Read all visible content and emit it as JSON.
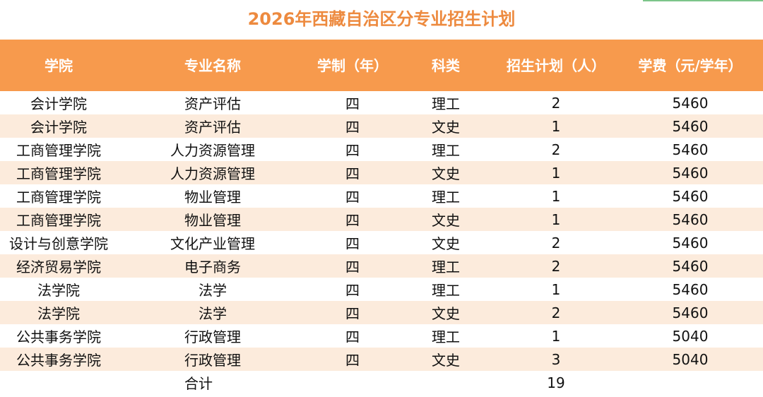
{
  "title": "2026年西藏自治区分专业招生计划",
  "headers": [
    "学院",
    "专业名称",
    "学制（年）",
    "科类",
    "招生计划（人）",
    "学费（元/学年）"
  ],
  "rows": [
    [
      "会计学院",
      "资产评估",
      "四",
      "理工",
      "2",
      "5460"
    ],
    [
      "会计学院",
      "资产评估",
      "四",
      "文史",
      "1",
      "5460"
    ],
    [
      "工商管理学院",
      "人力资源管理",
      "四",
      "理工",
      "2",
      "5460"
    ],
    [
      "工商管理学院",
      "人力资源管理",
      "四",
      "文史",
      "1",
      "5460"
    ],
    [
      "工商管理学院",
      "物业管理",
      "四",
      "理工",
      "1",
      "5460"
    ],
    [
      "工商管理学院",
      "物业管理",
      "四",
      "文史",
      "1",
      "5460"
    ],
    [
      "设计与创意学院",
      "文化产业管理",
      "四",
      "文史",
      "2",
      "5460"
    ],
    [
      "经济贸易学院",
      "电子商务",
      "四",
      "理工",
      "2",
      "5460"
    ],
    [
      "法学院",
      "法学",
      "四",
      "理工",
      "1",
      "5460"
    ],
    [
      "法学院",
      "法学",
      "四",
      "文史",
      "2",
      "5460"
    ],
    [
      "公共事务学院",
      "行政管理",
      "四",
      "理工",
      "1",
      "5040"
    ],
    [
      "公共事务学院",
      "行政管理",
      "四",
      "文史",
      "3",
      "5040"
    ]
  ],
  "total": {
    "label": "合计",
    "value": "19"
  },
  "colors": {
    "header_bg": "#f79a4d",
    "stripe_bg": "#fcebdc",
    "title": "#ed8a3f"
  }
}
